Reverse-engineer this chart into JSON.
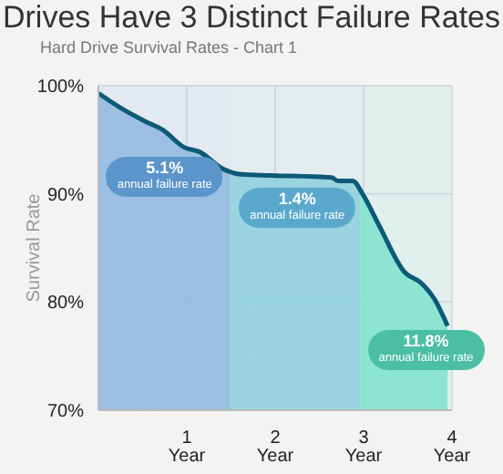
{
  "chart_data": {
    "type": "area",
    "title": "Drives Have 3 Distinct Failure Rates",
    "subtitle": "Hard Drive Survival Rates - Chart 1",
    "ylabel": "Survival Rate",
    "x": [
      0,
      0.26,
      0.53,
      0.73,
      0.97,
      1.14,
      1.41,
      1.62,
      1.96,
      2.64,
      2.71,
      2.88,
      2.98,
      3.18,
      3.46,
      3.66,
      3.8,
      3.95
    ],
    "series": [
      {
        "color": "#0d5a78",
        "values": [
          99.3,
          97.9,
          96.7,
          95.9,
          94.3,
          93.9,
          92.3,
          91.8,
          91.7,
          91.5,
          91.2,
          91.2,
          90.1,
          87.0,
          82.8,
          81.7,
          80.3,
          77.8
        ]
      }
    ],
    "xlim": [
      0,
      4
    ],
    "xticks": [
      {
        "value": 1,
        "label": "1 Year"
      },
      {
        "value": 2,
        "label": "2 Year"
      },
      {
        "value": 3,
        "label": "3 Year"
      },
      {
        "value": 4,
        "label": "4 Year"
      }
    ],
    "ylim": [
      70,
      100
    ],
    "yticks": [
      {
        "value": 70,
        "label": "70%"
      },
      {
        "value": 80,
        "label": "80%"
      },
      {
        "value": 90,
        "label": "90%"
      },
      {
        "value": 100,
        "label": "100%"
      }
    ],
    "bands": [
      {
        "axis": "x",
        "from": 0,
        "to": 1.5,
        "label": "5.1% annual failure rate",
        "color": "#8fb8e2"
      },
      {
        "axis": "x",
        "from": 1.5,
        "to": 3,
        "label": "1.4% annual failure rate",
        "color": "#8ccfdd"
      },
      {
        "axis": "x",
        "from": 3,
        "to": 4,
        "label": "11.8% annual failure rate",
        "color": "#7de3cc"
      }
    ],
    "grid": true,
    "line_style": "solid"
  }
}
